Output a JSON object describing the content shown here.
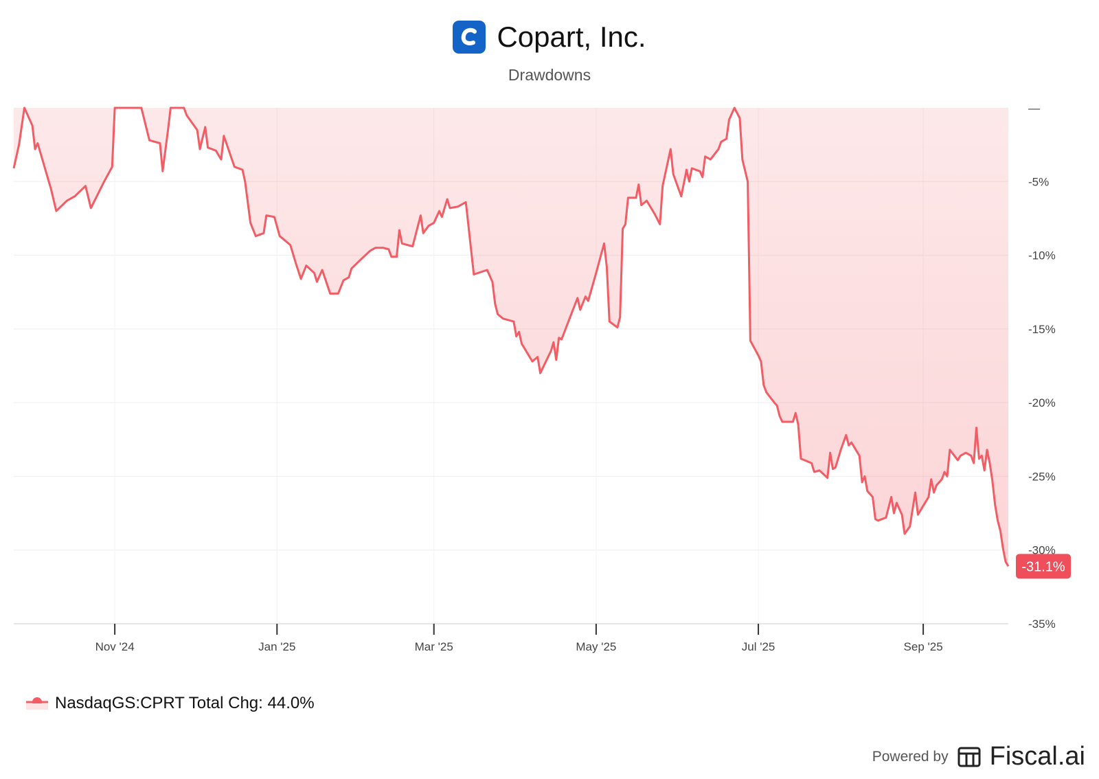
{
  "header": {
    "company": "Copart, Inc.",
    "subtitle": "Drawdowns",
    "logo_icon": "copart-c-logo"
  },
  "legend": {
    "label": "NasdaqGS:CPRT Total Chg: 44.0%",
    "color": "#f25c64"
  },
  "footer": {
    "powered_by": "Powered by",
    "brand": "Fiscal.ai",
    "brand_icon": "fiscal-ai-logo-icon"
  },
  "chart_data": {
    "type": "area",
    "title": "Drawdowns",
    "ylabel": "",
    "xlabel": "",
    "ylim": [
      -35,
      0
    ],
    "xlim": [
      "2024-09-24",
      "2025-10-03"
    ],
    "y_ticks": [
      0,
      -5,
      -10,
      -15,
      -20,
      -25,
      -30,
      -35
    ],
    "y_tick_labels": [
      "—",
      "-5%",
      "-10%",
      "-15%",
      "-20%",
      "-25%",
      "-30%",
      "-35%"
    ],
    "x_ticks": [
      {
        "date": "2024-11-01",
        "label": "Nov '24"
      },
      {
        "date": "2025-01-01",
        "label": "Jan '25"
      },
      {
        "date": "2025-03-01",
        "label": "Mar '25"
      },
      {
        "date": "2025-05-01",
        "label": "May '25"
      },
      {
        "date": "2025-07-01",
        "label": "Jul '25"
      },
      {
        "date": "2025-09-01",
        "label": "Sep '25"
      }
    ],
    "last_value_label": "-31.1%",
    "grid": true,
    "colors": {
      "line": "#f25c64",
      "fill": "#fde3e4",
      "badge": "#ee4f5a"
    },
    "series": [
      {
        "name": "NasdaqGS:CPRT",
        "points": [
          [
            "2024-09-24",
            -4.1
          ],
          [
            "2024-09-26",
            -2.5
          ],
          [
            "2024-09-28",
            0
          ],
          [
            "2024-10-01",
            -1.2
          ],
          [
            "2024-10-02",
            -2.8
          ],
          [
            "2024-10-03",
            -2.4
          ],
          [
            "2024-10-08",
            -5.5
          ],
          [
            "2024-10-10",
            -7.0
          ],
          [
            "2024-10-14",
            -6.3
          ],
          [
            "2024-10-17",
            -6.0
          ],
          [
            "2024-10-21",
            -5.3
          ],
          [
            "2024-10-23",
            -6.8
          ],
          [
            "2024-10-28",
            -5.0
          ],
          [
            "2024-10-31",
            -4.0
          ],
          [
            "2024-11-01",
            0
          ],
          [
            "2024-11-05",
            0
          ],
          [
            "2024-11-11",
            0
          ],
          [
            "2024-11-14",
            -2.2
          ],
          [
            "2024-11-18",
            -2.4
          ],
          [
            "2024-11-19",
            -4.3
          ],
          [
            "2024-11-21",
            -1.5
          ],
          [
            "2024-11-22",
            0
          ],
          [
            "2024-11-27",
            0
          ],
          [
            "2024-11-28",
            -0.5
          ],
          [
            "2024-12-02",
            -1.5
          ],
          [
            "2024-12-03",
            -2.8
          ],
          [
            "2024-12-05",
            -1.3
          ],
          [
            "2024-12-06",
            -2.7
          ],
          [
            "2024-12-09",
            -2.9
          ],
          [
            "2024-12-11",
            -3.5
          ],
          [
            "2024-12-12",
            -1.9
          ],
          [
            "2024-12-16",
            -4.0
          ],
          [
            "2024-12-19",
            -4.2
          ],
          [
            "2024-12-20",
            -5.0
          ],
          [
            "2024-12-22",
            -7.8
          ],
          [
            "2024-12-24",
            -8.7
          ],
          [
            "2024-12-27",
            -8.5
          ],
          [
            "2024-12-28",
            -7.3
          ],
          [
            "2024-12-31",
            -7.4
          ],
          [
            "2025-01-02",
            -8.7
          ],
          [
            "2025-01-06",
            -9.3
          ],
          [
            "2025-01-08",
            -10.5
          ],
          [
            "2025-01-10",
            -11.6
          ],
          [
            "2025-01-12",
            -10.7
          ],
          [
            "2025-01-15",
            -11.2
          ],
          [
            "2025-01-16",
            -11.8
          ],
          [
            "2025-01-18",
            -11.0
          ],
          [
            "2025-01-21",
            -12.6
          ],
          [
            "2025-01-24",
            -12.6
          ],
          [
            "2025-01-26",
            -11.7
          ],
          [
            "2025-01-28",
            -11.5
          ],
          [
            "2025-01-29",
            -10.9
          ],
          [
            "2025-02-02",
            -10.2
          ],
          [
            "2025-02-05",
            -9.7
          ],
          [
            "2025-02-07",
            -9.5
          ],
          [
            "2025-02-10",
            -9.5
          ],
          [
            "2025-02-12",
            -9.6
          ],
          [
            "2025-02-13",
            -10.1
          ],
          [
            "2025-02-15",
            -10.1
          ],
          [
            "2025-02-16",
            -8.3
          ],
          [
            "2025-02-17",
            -9.2
          ],
          [
            "2025-02-21",
            -9.4
          ],
          [
            "2025-02-24",
            -7.3
          ],
          [
            "2025-02-25",
            -8.5
          ],
          [
            "2025-02-27",
            -8.0
          ],
          [
            "2025-03-01",
            -7.8
          ],
          [
            "2025-03-03",
            -7.0
          ],
          [
            "2025-03-04",
            -7.4
          ],
          [
            "2025-03-06",
            -6.2
          ],
          [
            "2025-03-07",
            -6.8
          ],
          [
            "2025-03-10",
            -6.7
          ],
          [
            "2025-03-13",
            -6.4
          ],
          [
            "2025-03-16",
            -11.3
          ],
          [
            "2025-03-21",
            -11.0
          ],
          [
            "2025-03-23",
            -11.8
          ],
          [
            "2025-03-24",
            -13.3
          ],
          [
            "2025-03-25",
            -14.0
          ],
          [
            "2025-03-27",
            -14.3
          ],
          [
            "2025-03-31",
            -14.5
          ],
          [
            "2025-04-01",
            -15.5
          ],
          [
            "2025-04-02",
            -15.2
          ],
          [
            "2025-04-03",
            -16.0
          ],
          [
            "2025-04-07",
            -17.2
          ],
          [
            "2025-04-09",
            -16.9
          ],
          [
            "2025-04-10",
            -18.0
          ],
          [
            "2025-04-14",
            -16.5
          ],
          [
            "2025-04-15",
            -15.9
          ],
          [
            "2025-04-16",
            -17.1
          ],
          [
            "2025-04-17",
            -15.6
          ],
          [
            "2025-04-18",
            -15.7
          ],
          [
            "2025-04-21",
            -14.3
          ],
          [
            "2025-04-24",
            -12.9
          ],
          [
            "2025-04-25",
            -13.7
          ],
          [
            "2025-04-27",
            -12.8
          ],
          [
            "2025-04-28",
            -13.1
          ],
          [
            "2025-05-01",
            -11.2
          ],
          [
            "2025-05-04",
            -9.2
          ],
          [
            "2025-05-05",
            -10.8
          ],
          [
            "2025-05-06",
            -14.5
          ],
          [
            "2025-05-09",
            -14.9
          ],
          [
            "2025-05-10",
            -14.2
          ],
          [
            "2025-05-11",
            -8.2
          ],
          [
            "2025-05-12",
            -7.9
          ],
          [
            "2025-05-13",
            -6.1
          ],
          [
            "2025-05-16",
            -6.1
          ],
          [
            "2025-05-17",
            -5.2
          ],
          [
            "2025-05-18",
            -6.6
          ],
          [
            "2025-05-20",
            -6.3
          ],
          [
            "2025-05-23",
            -7.2
          ],
          [
            "2025-05-25",
            -7.9
          ],
          [
            "2025-05-26",
            -5.3
          ],
          [
            "2025-05-29",
            -2.8
          ],
          [
            "2025-05-30",
            -4.5
          ],
          [
            "2025-06-02",
            -6.0
          ],
          [
            "2025-06-03",
            -5.1
          ],
          [
            "2025-06-04",
            -4.2
          ],
          [
            "2025-06-05",
            -5.0
          ],
          [
            "2025-06-06",
            -4.1
          ],
          [
            "2025-06-09",
            -4.3
          ],
          [
            "2025-06-10",
            -4.7
          ],
          [
            "2025-06-11",
            -3.3
          ],
          [
            "2025-06-13",
            -3.5
          ],
          [
            "2025-06-16",
            -2.8
          ],
          [
            "2025-06-17",
            -2.3
          ],
          [
            "2025-06-19",
            -2.1
          ],
          [
            "2025-06-20",
            -0.8
          ],
          [
            "2025-06-22",
            0
          ],
          [
            "2025-06-24",
            -0.7
          ],
          [
            "2025-06-25",
            -3.5
          ],
          [
            "2025-06-27",
            -5.0
          ],
          [
            "2025-06-28",
            -15.8
          ],
          [
            "2025-07-01",
            -16.8
          ],
          [
            "2025-07-02",
            -17.2
          ],
          [
            "2025-07-03",
            -18.8
          ],
          [
            "2025-07-04",
            -19.3
          ],
          [
            "2025-07-07",
            -20.0
          ],
          [
            "2025-07-08",
            -20.2
          ],
          [
            "2025-07-09",
            -20.9
          ],
          [
            "2025-07-10",
            -21.3
          ],
          [
            "2025-07-14",
            -21.3
          ],
          [
            "2025-07-15",
            -20.7
          ],
          [
            "2025-07-16",
            -21.5
          ],
          [
            "2025-07-17",
            -23.8
          ],
          [
            "2025-07-21",
            -24.1
          ],
          [
            "2025-07-22",
            -24.7
          ],
          [
            "2025-07-24",
            -24.6
          ],
          [
            "2025-07-27",
            -25.1
          ],
          [
            "2025-07-28",
            -23.4
          ],
          [
            "2025-07-29",
            -24.5
          ],
          [
            "2025-07-30",
            -24.4
          ],
          [
            "2025-08-01",
            -23.2
          ],
          [
            "2025-08-03",
            -22.2
          ],
          [
            "2025-08-04",
            -22.9
          ],
          [
            "2025-08-05",
            -22.7
          ],
          [
            "2025-08-07",
            -23.3
          ],
          [
            "2025-08-08",
            -23.6
          ],
          [
            "2025-08-09",
            -25.4
          ],
          [
            "2025-08-10",
            -25.0
          ],
          [
            "2025-08-11",
            -26.0
          ],
          [
            "2025-08-13",
            -26.4
          ],
          [
            "2025-08-14",
            -27.9
          ],
          [
            "2025-08-15",
            -28.0
          ],
          [
            "2025-08-18",
            -27.8
          ],
          [
            "2025-08-20",
            -26.4
          ],
          [
            "2025-08-21",
            -27.5
          ],
          [
            "2025-08-22",
            -26.8
          ],
          [
            "2025-08-24",
            -27.6
          ],
          [
            "2025-08-25",
            -28.9
          ],
          [
            "2025-08-27",
            -28.4
          ],
          [
            "2025-08-29",
            -26.1
          ],
          [
            "2025-08-30",
            -27.6
          ],
          [
            "2025-09-01",
            -27.0
          ],
          [
            "2025-09-03",
            -26.4
          ],
          [
            "2025-09-04",
            -25.2
          ],
          [
            "2025-09-05",
            -26.1
          ],
          [
            "2025-09-06",
            -25.6
          ],
          [
            "2025-09-08",
            -25.2
          ],
          [
            "2025-09-09",
            -24.7
          ],
          [
            "2025-09-10",
            -25.0
          ],
          [
            "2025-09-11",
            -23.2
          ],
          [
            "2025-09-14",
            -23.9
          ],
          [
            "2025-09-15",
            -23.6
          ],
          [
            "2025-09-17",
            -23.4
          ],
          [
            "2025-09-19",
            -23.6
          ],
          [
            "2025-09-20",
            -24.1
          ],
          [
            "2025-09-21",
            -21.7
          ],
          [
            "2025-09-22",
            -23.8
          ],
          [
            "2025-09-23",
            -23.6
          ],
          [
            "2025-09-24",
            -24.6
          ],
          [
            "2025-09-25",
            -23.2
          ],
          [
            "2025-09-26",
            -24.1
          ],
          [
            "2025-09-27",
            -25.3
          ],
          [
            "2025-09-28",
            -26.9
          ],
          [
            "2025-09-29",
            -28.0
          ],
          [
            "2025-09-30",
            -28.7
          ],
          [
            "2025-10-01",
            -29.9
          ],
          [
            "2025-10-02",
            -30.8
          ],
          [
            "2025-10-03",
            -31.1
          ]
        ]
      }
    ]
  }
}
